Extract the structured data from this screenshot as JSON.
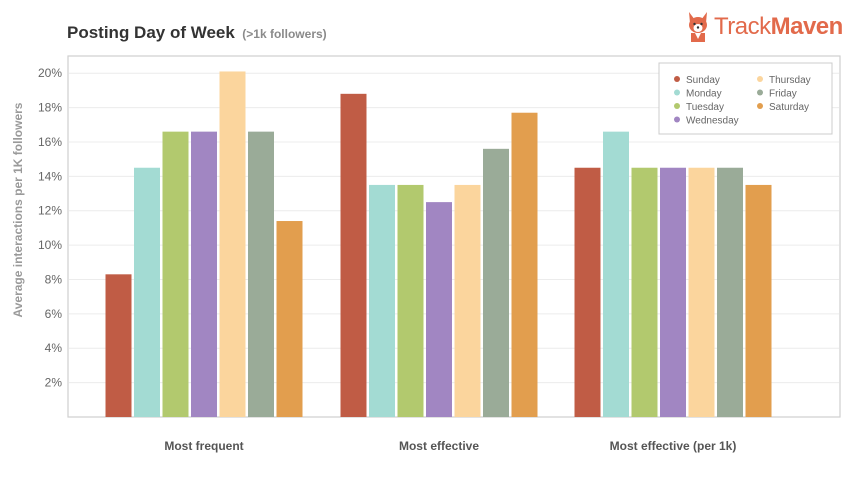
{
  "chart_data": {
    "type": "bar",
    "title": "Posting Day of Week",
    "subtitle": "(>1k followers)",
    "xlabel": "",
    "ylabel": "Average interactions per 1K followers",
    "ylim": [
      0,
      21
    ],
    "yticks": [
      "2%",
      "4%",
      "6%",
      "8%",
      "10%",
      "12%",
      "14%",
      "16%",
      "18%",
      "20%"
    ],
    "ytick_values": [
      2,
      4,
      6,
      8,
      10,
      12,
      14,
      16,
      18,
      20
    ],
    "categories": [
      "Most frequent",
      "Most effective",
      "Most effective (per 1k)"
    ],
    "grid": true,
    "legend_position": "top-right",
    "series": [
      {
        "name": "Sunday",
        "color": "#c05c45",
        "values": [
          8.3,
          18.8,
          14.5
        ]
      },
      {
        "name": "Monday",
        "color": "#a3dbd3",
        "values": [
          14.5,
          13.5,
          16.6
        ]
      },
      {
        "name": "Tuesday",
        "color": "#b2c96e",
        "values": [
          16.6,
          13.5,
          14.5
        ]
      },
      {
        "name": "Wednesday",
        "color": "#a186c2",
        "values": [
          16.6,
          12.5,
          14.5
        ]
      },
      {
        "name": "Thursday",
        "color": "#fbd59d",
        "values": [
          20.1,
          13.5,
          14.5
        ]
      },
      {
        "name": "Friday",
        "color": "#9aab98",
        "values": [
          16.6,
          15.6,
          14.5
        ]
      },
      {
        "name": "Saturday",
        "color": "#e29e4e",
        "values": [
          11.4,
          17.7,
          13.5
        ]
      }
    ]
  },
  "brand": {
    "part1": "Track",
    "part2": "Maven",
    "logo_icon": "corgi-icon"
  }
}
